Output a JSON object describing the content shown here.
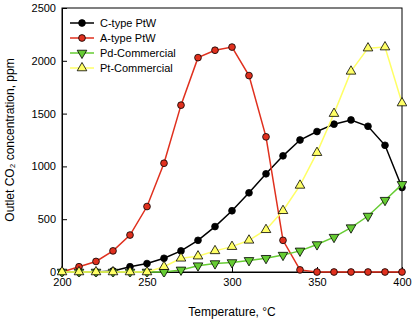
{
  "chart_data": {
    "type": "line",
    "x_label": "Temperature, °C",
    "y_label": "Outlet CO₂ concentration, ppm",
    "x": [
      200,
      210,
      220,
      230,
      240,
      250,
      260,
      270,
      280,
      290,
      300,
      310,
      320,
      330,
      340,
      350,
      360,
      370,
      380,
      390,
      400
    ],
    "series": [
      {
        "name": "C-type PtW",
        "color": "#000000",
        "marker": "circle",
        "values": [
          0,
          0,
          0,
          10,
          50,
          80,
          130,
          200,
          300,
          430,
          580,
          750,
          930,
          1100,
          1250,
          1330,
          1400,
          1440,
          1380,
          1200,
          800
        ]
      },
      {
        "name": "A-type PtW",
        "color": "#e0301e",
        "marker": "circle",
        "values": [
          0,
          50,
          100,
          200,
          350,
          620,
          1030,
          1580,
          2030,
          2100,
          2130,
          1860,
          1280,
          300,
          20,
          0,
          0,
          0,
          0,
          0,
          0
        ]
      },
      {
        "name": "Pd-Commercial",
        "color": "#66cc33",
        "marker": "triangle-down",
        "values": [
          0,
          0,
          0,
          0,
          0,
          0,
          0,
          20,
          60,
          80,
          90,
          110,
          130,
          160,
          200,
          260,
          330,
          420,
          530,
          680,
          830
        ]
      },
      {
        "name": "Pt-Commercial",
        "color": "#ffff66",
        "marker": "triangle-up",
        "values": [
          0,
          0,
          0,
          0,
          0,
          0,
          50,
          130,
          150,
          200,
          240,
          300,
          400,
          580,
          820,
          1130,
          1500,
          1900,
          2120,
          2130,
          1600
        ]
      }
    ],
    "xlim": [
      200,
      400
    ],
    "xticks": [
      200,
      250,
      300,
      350,
      400
    ],
    "ylim": [
      0,
      2500
    ],
    "yticks": [
      0,
      500,
      1000,
      1500,
      2000,
      2500
    ],
    "legend": "upper left",
    "grid": false
  }
}
